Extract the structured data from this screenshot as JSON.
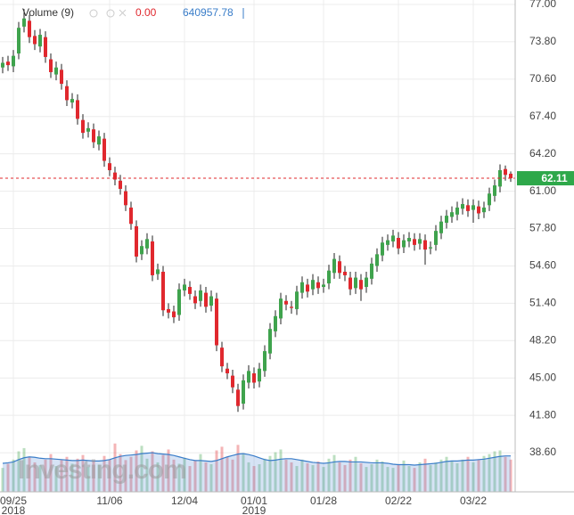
{
  "chart_data": {
    "type": "candlestick",
    "open": [
      71.6,
      72.1,
      71.7,
      72.8,
      75.1,
      75.6,
      74.3,
      73.4,
      74.2,
      72.3,
      71.0,
      71.4,
      70.0,
      68.6,
      68.8,
      67.1,
      66.1,
      66.3,
      65.0,
      65.5,
      63.4,
      62.6,
      61.9,
      61.0,
      59.6,
      58.0,
      55.6,
      56.1,
      56.7,
      53.9,
      54.1,
      50.9,
      50.7,
      50.4,
      52.5,
      52.8,
      52.0,
      51.6,
      52.3,
      51.2,
      51.8,
      47.6,
      45.8,
      45.2,
      44.0,
      42.8,
      44.6,
      45.4,
      44.7,
      45.6,
      47.1,
      49.0,
      50.1,
      51.6,
      51.1,
      50.9,
      52.3,
      53.0,
      52.6,
      53.2,
      52.8,
      53.1,
      54.0,
      55.0,
      54.1,
      53.6,
      52.7,
      53.4,
      52.8,
      53.5,
      54.6,
      55.5,
      56.4,
      56.7,
      57.0,
      56.2,
      56.7,
      56.9,
      56.5,
      56.8,
      56.1,
      56.4,
      57.4,
      58.3,
      58.8,
      59.0,
      59.5,
      59.8,
      59.4,
      59.7,
      59.2,
      59.8,
      60.6,
      61.4,
      62.9,
      62.5
    ],
    "high": [
      72.5,
      72.6,
      73.1,
      75.5,
      76.6,
      76.1,
      74.8,
      74.9,
      74.7,
      72.8,
      72.1,
      71.9,
      70.5,
      69.4,
      69.3,
      67.6,
      66.9,
      66.8,
      66.2,
      66.0,
      63.9,
      63.1,
      62.4,
      61.5,
      60.1,
      58.5,
      56.8,
      57.4,
      57.2,
      54.8,
      54.6,
      51.4,
      51.2,
      53.1,
      53.5,
      53.3,
      52.5,
      53.0,
      52.8,
      52.5,
      52.3,
      48.1,
      46.3,
      45.7,
      44.5,
      45.3,
      46.1,
      45.9,
      46.3,
      47.8,
      49.7,
      50.8,
      52.3,
      52.1,
      51.6,
      52.9,
      53.7,
      53.5,
      53.9,
      53.7,
      53.5,
      54.7,
      55.7,
      55.5,
      54.6,
      54.1,
      54.1,
      53.9,
      54.1,
      55.3,
      56.1,
      57.1,
      57.3,
      57.7,
      57.5,
      57.3,
      57.5,
      57.4,
      57.4,
      57.3,
      56.7,
      58.1,
      58.9,
      59.4,
      59.7,
      60.1,
      60.4,
      60.3,
      60.3,
      60.2,
      60.1,
      61.3,
      62.0,
      63.3,
      63.2,
      62.7
    ],
    "low": [
      71.1,
      71.3,
      71.2,
      72.3,
      74.6,
      73.7,
      73.1,
      72.9,
      72.0,
      70.7,
      70.5,
      69.7,
      68.3,
      68.1,
      66.7,
      65.5,
      65.6,
      64.7,
      64.5,
      63.1,
      62.3,
      61.5,
      60.7,
      59.3,
      57.7,
      54.9,
      55.1,
      55.6,
      53.3,
      53.4,
      50.3,
      50.1,
      49.7,
      49.9,
      52.0,
      51.7,
      50.9,
      51.1,
      50.6,
      50.7,
      47.3,
      45.5,
      44.9,
      43.7,
      42.1,
      42.3,
      44.1,
      44.1,
      44.2,
      45.1,
      46.6,
      48.5,
      49.6,
      50.8,
      50.5,
      50.4,
      51.8,
      51.9,
      52.1,
      52.2,
      52.3,
      52.6,
      53.5,
      53.5,
      53.3,
      52.1,
      52.2,
      51.6,
      52.3,
      53.0,
      54.1,
      55.0,
      55.9,
      56.2,
      55.6,
      55.7,
      56.2,
      55.9,
      56.0,
      54.7,
      55.6,
      55.9,
      56.9,
      57.8,
      58.3,
      58.5,
      59.0,
      58.8,
      58.3,
      58.6,
      58.7,
      59.3,
      60.1,
      60.9,
      61.9,
      61.8
    ],
    "close": [
      72.0,
      71.8,
      72.6,
      75.0,
      75.8,
      74.2,
      73.6,
      74.4,
      72.5,
      71.2,
      71.6,
      70.2,
      68.8,
      68.9,
      67.2,
      66.0,
      66.4,
      65.2,
      65.7,
      63.6,
      62.8,
      62.0,
      61.2,
      59.8,
      58.2,
      55.4,
      56.3,
      56.9,
      53.8,
      54.3,
      50.8,
      50.6,
      50.2,
      52.6,
      53.0,
      52.2,
      51.4,
      52.5,
      51.1,
      52.0,
      47.8,
      46.0,
      45.4,
      44.2,
      42.6,
      44.8,
      45.6,
      44.6,
      45.8,
      47.3,
      49.2,
      50.3,
      51.8,
      51.3,
      51.0,
      52.4,
      53.2,
      52.4,
      53.4,
      52.7,
      53.0,
      54.2,
      55.2,
      54.0,
      53.8,
      52.6,
      53.6,
      52.6,
      53.6,
      54.8,
      55.6,
      56.6,
      56.8,
      57.2,
      56.1,
      56.8,
      57.0,
      56.4,
      56.9,
      56.0,
      56.2,
      57.6,
      58.4,
      58.9,
      59.2,
      59.6,
      59.9,
      59.3,
      59.8,
      59.1,
      59.6,
      60.8,
      61.5,
      62.8,
      62.4,
      62.11
    ],
    "volume": [
      520000,
      610000,
      700000,
      880000,
      950000,
      760000,
      640000,
      580000,
      700000,
      820000,
      560000,
      690000,
      760000,
      610000,
      720000,
      800000,
      540000,
      660000,
      590000,
      780000,
      700000,
      1050000,
      820000,
      690000,
      760000,
      900000,
      1000000,
      720000,
      880000,
      640000,
      800000,
      920000,
      700000,
      610000,
      740000,
      560000,
      680000,
      820000,
      640000,
      600000,
      900000,
      980000,
      760000,
      700000,
      1020000,
      820000,
      640000,
      560000,
      600000,
      720000,
      780000,
      860000,
      920000,
      700000,
      640000,
      560000,
      700000,
      620000,
      580000,
      660000,
      540000,
      720000,
      800000,
      640000,
      580000,
      700000,
      760000,
      620000,
      540000,
      600000,
      700000,
      660000,
      540000,
      520000,
      600000,
      680000,
      560000,
      520000,
      640000,
      720000,
      580000,
      640000,
      700000,
      760000,
      680000,
      620000,
      700000,
      760000,
      640000,
      700000,
      780000,
      820000,
      880000,
      900000,
      760000,
      700000
    ],
    "volume_ma": [
      620000,
      630000,
      650000,
      700000,
      740000,
      760000,
      750000,
      730000,
      720000,
      720000,
      710000,
      700000,
      690000,
      680000,
      680000,
      690000,
      680000,
      670000,
      670000,
      680000,
      700000,
      740000,
      770000,
      790000,
      800000,
      810000,
      830000,
      840000,
      850000,
      830000,
      820000,
      810000,
      790000,
      760000,
      730000,
      700000,
      680000,
      680000,
      670000,
      660000,
      680000,
      720000,
      760000,
      790000,
      820000,
      830000,
      810000,
      780000,
      740000,
      700000,
      680000,
      690000,
      710000,
      720000,
      720000,
      700000,
      680000,
      660000,
      640000,
      630000,
      620000,
      630000,
      650000,
      660000,
      660000,
      650000,
      650000,
      650000,
      640000,
      630000,
      630000,
      630000,
      620000,
      600000,
      590000,
      590000,
      590000,
      580000,
      590000,
      600000,
      610000,
      620000,
      640000,
      660000,
      670000,
      670000,
      680000,
      690000,
      690000,
      700000,
      710000,
      730000,
      750000,
      770000,
      780000,
      780000
    ],
    "volume_ylim": [
      0,
      1200000
    ],
    "volume_label": "Volume (9)",
    "volume_change": "0.00",
    "volume_value": 640957.78,
    "watermark": "Investing.com",
    "last_price": 62.11,
    "up_color": "#3fa34d",
    "down_color": "#e0282e",
    "ylim": [
      35.4,
      77.38
    ],
    "yticks": [
      {
        "value": 77,
        "label": "77.00"
      },
      {
        "value": 73.8,
        "label": "73.80"
      },
      {
        "value": 70.6,
        "label": "70.60"
      },
      {
        "value": 67.4,
        "label": "67.40"
      },
      {
        "value": 64.2,
        "label": "64.20"
      },
      {
        "value": 61,
        "label": "61.00"
      },
      {
        "value": 57.8,
        "label": "57.80"
      },
      {
        "value": 54.6,
        "label": "54.60"
      },
      {
        "value": 51.4,
        "label": "51.40"
      },
      {
        "value": 48.2,
        "label": "48.20"
      },
      {
        "value": 45,
        "label": "45.00"
      },
      {
        "value": 41.8,
        "label": "41.80"
      },
      {
        "value": 38.6,
        "label": "38.60"
      }
    ],
    "xticks": [
      {
        "value": 2,
        "label": "09/25",
        "sublabel": "2018"
      },
      {
        "value": 20,
        "label": "11/06"
      },
      {
        "value": 34,
        "label": "12/04"
      },
      {
        "value": 47,
        "label": "01/01",
        "sublabel": "2019"
      },
      {
        "value": 60,
        "label": "01/28"
      },
      {
        "value": 74,
        "label": "02/22"
      },
      {
        "value": 88,
        "label": "03/22"
      }
    ],
    "grid": true
  }
}
